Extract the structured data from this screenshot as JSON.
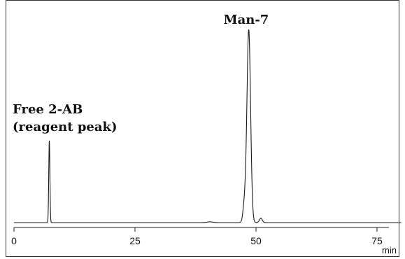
{
  "chart_data": {
    "type": "line",
    "title": "",
    "xlabel": "min",
    "ylabel": "",
    "xlim": [
      0,
      78
    ],
    "ylim": [
      0,
      1.0
    ],
    "grid": false,
    "x_ticks": [
      0,
      25,
      50,
      75
    ],
    "x_tick_labels": [
      "0",
      "25",
      "50",
      "75"
    ],
    "baseline": 0.0,
    "peaks": [
      {
        "x": 7.3,
        "height": 0.42,
        "width": 0.12
      },
      {
        "x": 40.5,
        "height": 0.004,
        "width": 0.6
      },
      {
        "x": 47.6,
        "height": 0.09,
        "width": 0.3
      },
      {
        "x": 48.5,
        "height": 0.99,
        "width": 0.38
      },
      {
        "x": 51.0,
        "height": 0.022,
        "width": 0.3
      }
    ],
    "annotations": [
      {
        "lines": [
          "Free 2-AB",
          "(reagent peak)"
        ],
        "x": 7.3
      },
      {
        "lines": [
          "Man-7"
        ],
        "x": 48.5
      }
    ]
  }
}
